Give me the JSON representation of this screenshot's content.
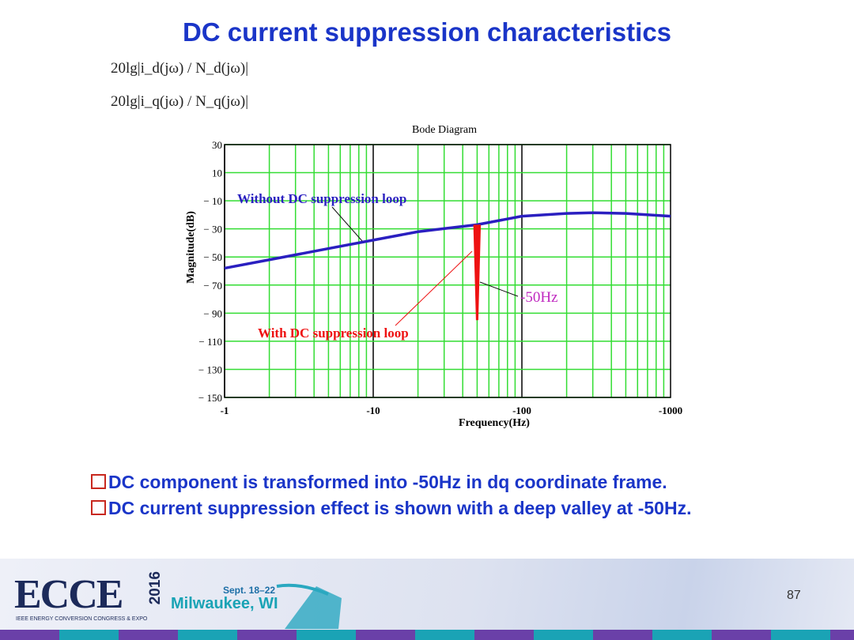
{
  "title": "DC current suppression characteristics",
  "formulas": [
    "20lg|i_d(jω) / N_d(jω)|",
    "20lg|i_q(jω) / N_q(jω)|"
  ],
  "bullets": [
    "DC component is transformed into -50Hz in dq coordinate frame.",
    "DC current suppression effect is shown with a deep valley at -50Hz."
  ],
  "footer": {
    "logo": "ECCE",
    "year": "2016",
    "subtitle": "IEEE ENERGY CONVERSION CONGRESS & EXPO",
    "dates": "Sept. 18–22",
    "city": "Milwaukee, WI",
    "page_number": "87"
  },
  "chart_data": {
    "type": "line",
    "title": "Bode Diagram",
    "xlabel": "Frequency(Hz)",
    "ylabel": "Magnitude(dB)",
    "xscale": "log",
    "xlim": [
      1,
      1000
    ],
    "ylim": [
      -150,
      30
    ],
    "xticks": [
      "-1",
      "-10",
      "-100",
      "-1000"
    ],
    "yticks": [
      30,
      10,
      -10,
      -30,
      -50,
      -70,
      -90,
      -110,
      -130,
      -150
    ],
    "grid": true,
    "colors": {
      "grid": "#33dd33",
      "without": "#2a1fc0",
      "with": "#ee1111"
    },
    "series": [
      {
        "name": "Without DC suppression loop",
        "x": [
          1,
          2,
          5,
          10,
          20,
          50,
          100,
          200,
          300,
          500,
          1000
        ],
        "y": [
          -58,
          -52,
          -44,
          -38,
          -32,
          -27,
          -21,
          -19,
          -18.5,
          -19,
          -21
        ]
      },
      {
        "name": "With DC suppression loop",
        "x": [
          48,
          50,
          52
        ],
        "y": [
          -27,
          -95,
          -27
        ]
      }
    ],
    "annotations": [
      {
        "text": "-50Hz",
        "x": 50,
        "y": -70
      }
    ]
  }
}
